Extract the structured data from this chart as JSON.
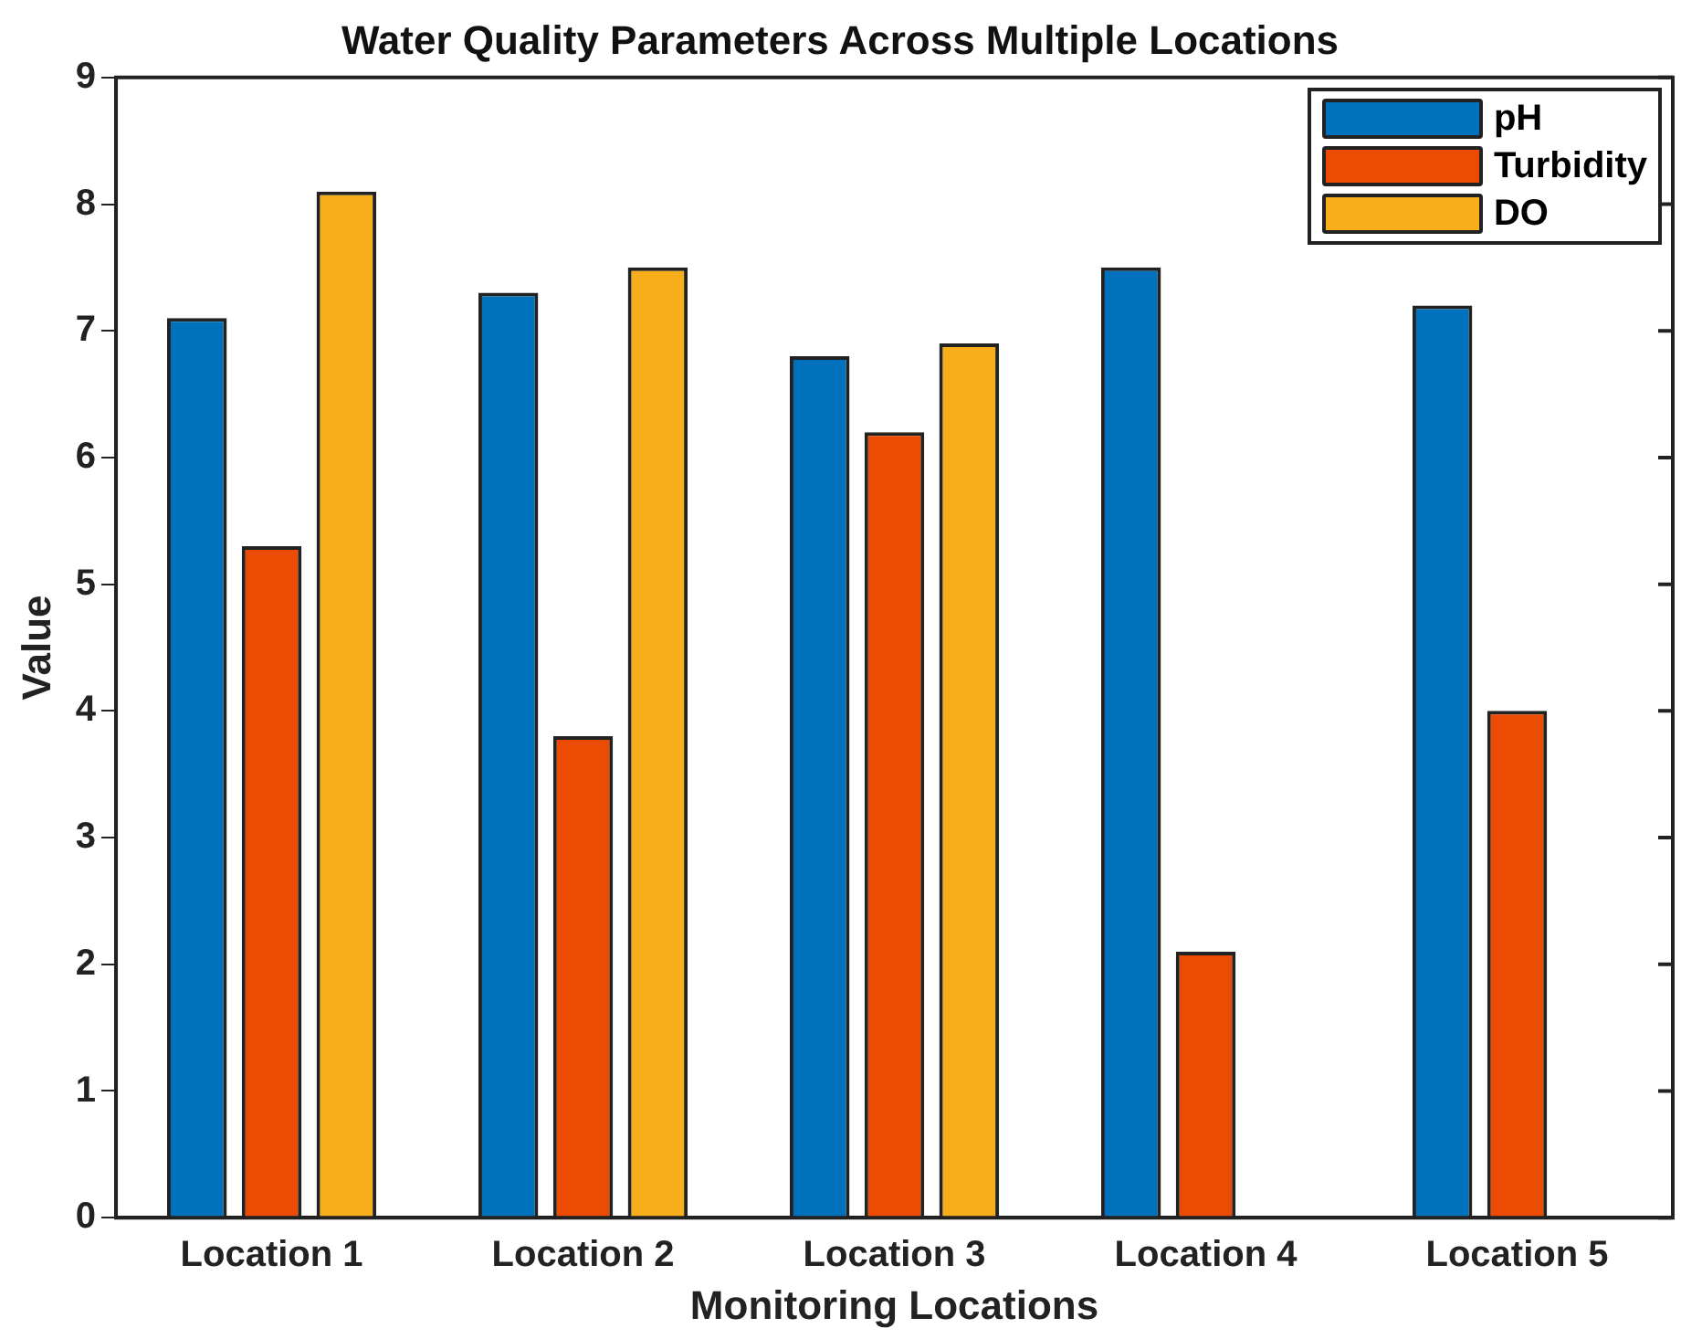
{
  "chart_data": {
    "type": "bar",
    "title": "Water Quality Parameters Across Multiple Locations",
    "xlabel": "Monitoring Locations",
    "ylabel": "Value",
    "categories": [
      "Location 1",
      "Location 2",
      "Location 3",
      "Location 4",
      "Location 5"
    ],
    "series": [
      {
        "name": "pH",
        "color": "#0072bd",
        "values": [
          7.1,
          7.3,
          6.8,
          7.5,
          7.2
        ]
      },
      {
        "name": "Turbidity",
        "color": "#ec4b04",
        "values": [
          5.3,
          3.8,
          6.2,
          2.1,
          4.0
        ]
      },
      {
        "name": "DO",
        "color": "#f8ad1b",
        "values": [
          8.1,
          7.5,
          6.9,
          null,
          null
        ]
      }
    ],
    "ylim": [
      0,
      9
    ],
    "yticks": [
      0,
      1,
      2,
      3,
      4,
      5,
      6,
      7,
      8,
      9
    ],
    "grid": false,
    "legend": "top right"
  }
}
